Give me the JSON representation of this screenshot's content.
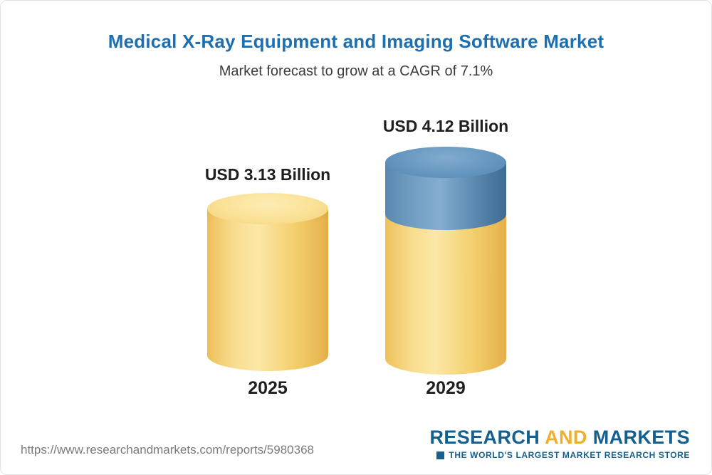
{
  "header": {
    "title": "Medical X-Ray Equipment and Imaging Software Market",
    "subtitle": "Market forecast to grow at a CAGR of 7.1%"
  },
  "chart_data": {
    "type": "bar",
    "categories": [
      "2025",
      "2029"
    ],
    "values": [
      3.13,
      4.12
    ],
    "value_labels": [
      "USD 3.13 Billion",
      "USD 4.12 Billion"
    ],
    "unit": "USD Billion",
    "title": "Medical X-Ray Equipment and Imaging Software Market",
    "subtitle": "Market forecast to grow at a CAGR of 7.1%",
    "cagr_percent": 7.1,
    "series": [
      {
        "name": "base-value",
        "values": [
          3.13,
          3.13
        ],
        "color": "#F6CE67"
      },
      {
        "name": "growth-to-2029",
        "values": [
          0,
          0.99
        ],
        "color": "#5E8EB8"
      }
    ],
    "legend_position": "none",
    "gridlines": false,
    "ylim": [
      0,
      4.5
    ],
    "bar_style": "3d-cylinder"
  },
  "footer": {
    "url": "https://www.researchandmarkets.com/reports/5980368",
    "logo": {
      "research": "RESEARCH",
      "and": "AND",
      "markets": "MARKETS",
      "tagline": "THE WORLD'S LARGEST MARKET RESEARCH STORE"
    }
  },
  "colors": {
    "title_blue": "#1E6FB0",
    "bar_base_gold": "#F6CE67",
    "bar_growth_blue": "#5E8EB8",
    "logo_blue": "#15608F",
    "logo_gold": "#EFAF2C"
  }
}
